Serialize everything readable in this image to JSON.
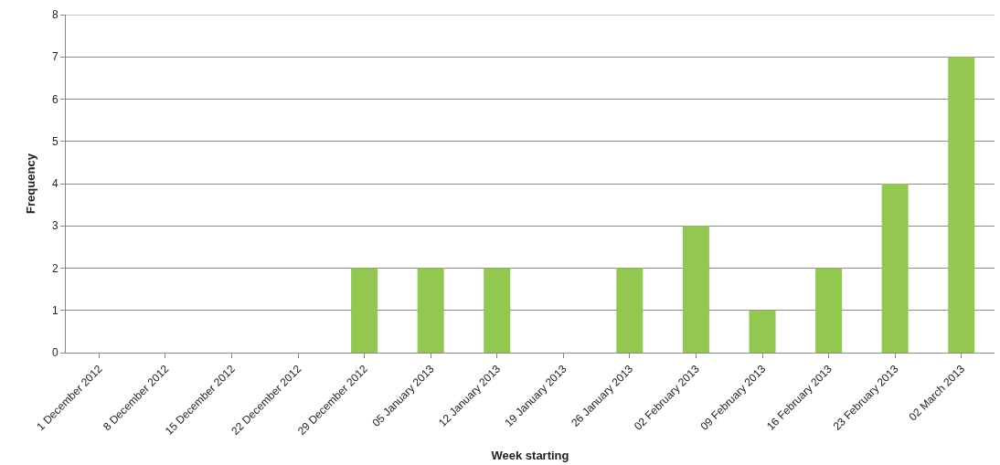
{
  "chart_data": {
    "type": "bar",
    "xlabel": "Week starting",
    "ylabel": "Frequency",
    "categories": [
      "1 December 2012",
      "8 December 2012",
      "15 December 2012",
      "22 December 2012",
      "29 December 2012",
      "05 January 2013",
      "12 January 2013",
      "19 January 2013",
      "26 January 2013",
      "02 February 2013",
      "09 February 2013",
      "16 February 2013",
      "23 February 2013",
      "02 March 2013"
    ],
    "values": [
      0,
      0,
      0,
      0,
      2,
      2,
      2,
      0,
      2,
      3,
      1,
      2,
      4,
      7
    ],
    "color": "#92c84f",
    "ylim": [
      0,
      8
    ],
    "yticks": [
      0,
      1,
      2,
      3,
      4,
      5,
      6,
      7,
      8
    ],
    "grid": "y"
  }
}
